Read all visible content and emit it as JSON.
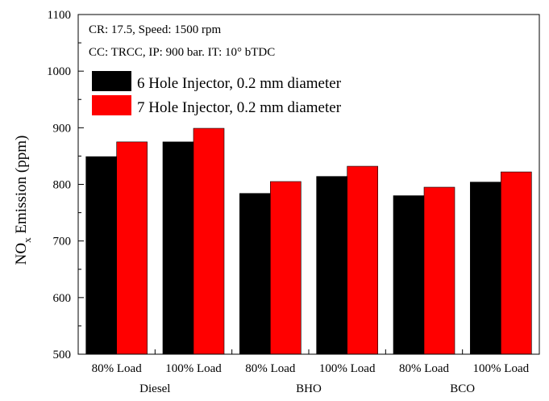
{
  "chart_data": {
    "type": "bar",
    "ylabel_main": "NO",
    "ylabel_sub": "x",
    "ylabel_rest": " Emission (ppm)",
    "ylim": [
      500,
      1100
    ],
    "yticks": [
      500,
      600,
      700,
      800,
      900,
      1000,
      1100
    ],
    "annotations": [
      "CR: 17.5, Speed: 1500 rpm",
      "CC: TRCC, IP: 900 bar. IT: 10° bTDC"
    ],
    "categories": [
      "80% Load",
      "100% Load",
      "80% Load",
      "100% Load",
      "80% Load",
      "100% Load"
    ],
    "groups": [
      {
        "label": "Diesel",
        "span": [
          0,
          1
        ]
      },
      {
        "label": "BHO",
        "span": [
          2,
          3
        ]
      },
      {
        "label": "BCO",
        "span": [
          4,
          5
        ]
      }
    ],
    "series": [
      {
        "name": "6 Hole Injector, 0.2 mm diameter",
        "color": "#000000",
        "values": [
          849,
          875,
          784,
          814,
          780,
          804
        ]
      },
      {
        "name": "7 Hole Injector, 0.2 mm diameter",
        "color": "#ff0000",
        "values": [
          875,
          899,
          805,
          832,
          795,
          822
        ]
      }
    ],
    "legend_position": "top-left",
    "grid": false
  }
}
